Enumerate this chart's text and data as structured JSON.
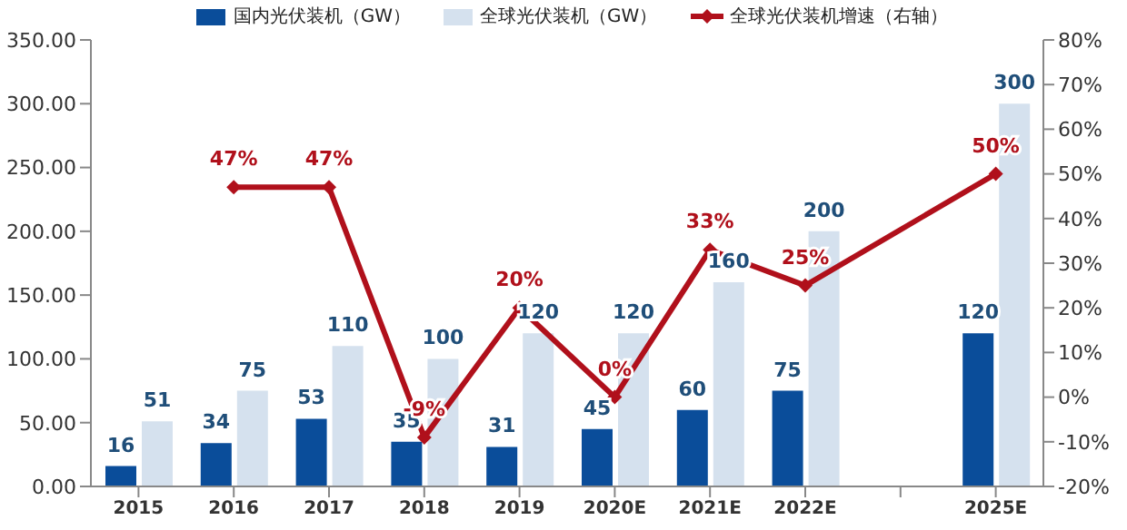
{
  "chart_data": {
    "type": "bar",
    "categories": [
      "2015",
      "2016",
      "2017",
      "2018",
      "2019",
      "2020E",
      "2021E",
      "2022E",
      null,
      "2025E"
    ],
    "series": [
      {
        "name": "国内光伏装机（GW）",
        "color": "#0a4d9a",
        "values": [
          16,
          34,
          53,
          35,
          31,
          45,
          60,
          75,
          null,
          120
        ]
      },
      {
        "name": "全球光伏装机（GW）",
        "color": "#d5e1ee",
        "values": [
          51,
          75,
          110,
          100,
          120,
          120,
          160,
          200,
          null,
          300
        ]
      },
      {
        "name": "全球光伏装机增速（右轴）",
        "type": "line",
        "axis": "y2",
        "color": "#b0101b",
        "marker": "diamond",
        "values": [
          null,
          47,
          47,
          -9,
          20,
          0,
          33,
          25,
          null,
          50
        ],
        "value_labels": [
          null,
          "47%",
          "47%",
          "-9%",
          "20%",
          "0%",
          "33%",
          "25%",
          null,
          "50%"
        ]
      }
    ],
    "data_labels": true,
    "ylim": [
      0,
      350
    ],
    "yticks": [
      {
        "value": 0,
        "label": "0.00"
      },
      {
        "value": 50,
        "label": "50.00"
      },
      {
        "value": 100,
        "label": "100.00"
      },
      {
        "value": 150,
        "label": "150.00"
      },
      {
        "value": 200,
        "label": "200.00"
      },
      {
        "value": 250,
        "label": "250.00"
      },
      {
        "value": 300,
        "label": "300.00"
      },
      {
        "value": 350,
        "label": "350.00"
      }
    ],
    "y2lim": [
      -20,
      80
    ],
    "y2ticks": [
      {
        "value": -20,
        "label": "-20%"
      },
      {
        "value": -10,
        "label": "-10%"
      },
      {
        "value": 0,
        "label": "0%"
      },
      {
        "value": 10,
        "label": "10%"
      },
      {
        "value": 20,
        "label": "20%"
      },
      {
        "value": 30,
        "label": "30%"
      },
      {
        "value": 40,
        "label": "40%"
      },
      {
        "value": 50,
        "label": "50%"
      },
      {
        "value": 60,
        "label": "60%"
      },
      {
        "value": 70,
        "label": "70%"
      },
      {
        "value": 80,
        "label": "80%"
      }
    ],
    "legend": "top",
    "grid": false
  }
}
